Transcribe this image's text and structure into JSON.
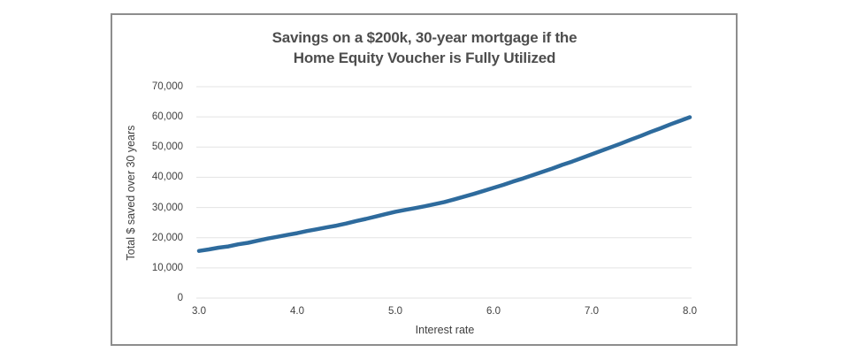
{
  "window": {
    "background_color": "#ffffff",
    "card_border_color": "#8d8d8d"
  },
  "chart_data": {
    "type": "line",
    "title_lines": [
      "Savings on a $200k, 30-year mortgage if the",
      "Home Equity Voucher is Fully Utilized"
    ],
    "xlabel": "Interest rate",
    "ylabel": "Total $ saved over 30 years",
    "xlim": [
      3.0,
      8.0
    ],
    "ylim": [
      0,
      70000
    ],
    "x_ticks": [
      3.0,
      4.0,
      5.0,
      6.0,
      7.0,
      8.0
    ],
    "x_tick_labels": [
      "3.0",
      "4.0",
      "5.0",
      "6.0",
      "7.0",
      "8.0"
    ],
    "y_ticks": [
      0,
      10000,
      20000,
      30000,
      40000,
      50000,
      60000,
      70000
    ],
    "y_tick_labels": [
      "0",
      "10,000",
      "20,000",
      "30,000",
      "40,000",
      "50,000",
      "60,000",
      "70,000"
    ],
    "grid": "horizontal",
    "legend": "none",
    "line_color": "#2e6b9d",
    "grid_color": "#e3e3e3",
    "title_color": "#4d4d4d",
    "text_color": "#404040",
    "series": [
      {
        "name": "Total $ saved",
        "x": [
          3.0,
          3.1,
          3.2,
          3.3,
          3.4,
          3.5,
          3.6,
          3.7,
          3.8,
          3.9,
          4.0,
          4.1,
          4.2,
          4.3,
          4.4,
          4.5,
          4.6,
          4.7,
          4.8,
          4.9,
          5.0,
          5.1,
          5.2,
          5.3,
          5.4,
          5.5,
          5.6,
          5.7,
          5.8,
          5.9,
          6.0,
          6.1,
          6.2,
          6.3,
          6.4,
          6.5,
          6.6,
          6.7,
          6.8,
          6.9,
          7.0,
          7.1,
          7.2,
          7.3,
          7.4,
          7.5,
          7.6,
          7.7,
          7.8,
          7.9,
          8.0
        ],
        "y": [
          15600,
          16100,
          16700,
          17100,
          17800,
          18300,
          19000,
          19700,
          20300,
          20900,
          21500,
          22200,
          22800,
          23400,
          24000,
          24700,
          25500,
          26200,
          27000,
          27800,
          28600,
          29200,
          29800,
          30400,
          31100,
          31800,
          32700,
          33600,
          34500,
          35500,
          36500,
          37500,
          38600,
          39600,
          40700,
          41800,
          42900,
          44100,
          45200,
          46400,
          47600,
          48800,
          50000,
          51200,
          52500,
          53700,
          55000,
          56200,
          57500,
          58700,
          59900
        ]
      }
    ]
  }
}
